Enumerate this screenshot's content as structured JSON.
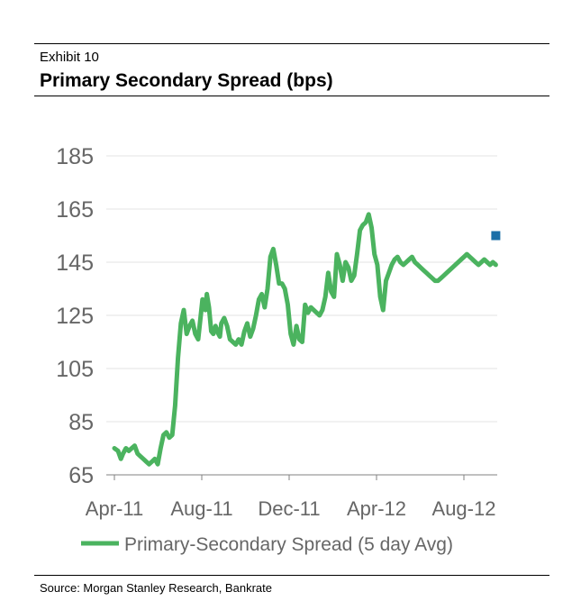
{
  "exhibit_label": "Exhibit 10",
  "title": "Primary Secondary Spread (bps)",
  "source": "Source: Morgan Stanley Research, Bankrate",
  "chart_data": {
    "type": "line",
    "title": "Primary Secondary Spread (bps)",
    "xlabel": "",
    "ylabel": "",
    "x_tick_labels": [
      "Apr-11",
      "Aug-11",
      "Dec-11",
      "Apr-12",
      "Aug-12"
    ],
    "y_ticks": [
      65,
      85,
      105,
      125,
      145,
      165,
      185
    ],
    "ylim": [
      65,
      185
    ],
    "x_range_days": [
      0,
      530
    ],
    "grid": true,
    "legend": "bottom",
    "series": [
      {
        "name": "Primary-Secondary Spread (5 day Avg)",
        "color": "#4bb35f",
        "x": [
          0,
          5,
          9,
          12,
          16,
          20,
          24,
          28,
          32,
          36,
          40,
          44,
          48,
          52,
          56,
          60,
          64,
          68,
          72,
          76,
          80,
          84,
          88,
          92,
          96,
          100,
          104,
          108,
          112,
          116,
          118,
          122,
          126,
          128,
          131,
          134,
          137,
          140,
          144,
          146,
          148,
          152,
          156,
          160,
          164,
          168,
          172,
          176,
          180,
          184,
          188,
          192,
          196,
          200,
          204,
          208,
          212,
          216,
          220,
          224,
          228,
          232,
          236,
          240,
          244,
          248,
          252,
          256,
          260,
          264,
          268,
          272,
          276,
          280,
          284,
          288,
          292,
          296,
          300,
          304,
          308,
          312,
          316,
          320,
          324,
          328,
          332,
          336,
          340,
          344,
          348,
          352,
          356,
          360,
          364,
          368,
          372,
          376,
          380,
          384,
          388,
          392,
          396,
          400,
          404,
          408,
          412,
          416,
          420,
          424,
          428,
          432,
          436,
          440,
          444,
          448,
          452,
          456,
          460,
          464,
          468,
          472,
          476,
          480,
          484,
          488,
          492,
          496,
          500,
          504,
          508,
          512,
          516,
          520,
          524,
          528
        ],
        "values": [
          75,
          74,
          71,
          73,
          75,
          74,
          75,
          76,
          73,
          72,
          71,
          70,
          69,
          70,
          71,
          69,
          75,
          80,
          81,
          79,
          80,
          91,
          109,
          122,
          127,
          118,
          121,
          123,
          118,
          116,
          121,
          131,
          127,
          133,
          128,
          119,
          118,
          121,
          118,
          117,
          122,
          124,
          121,
          116,
          115,
          114,
          116,
          114,
          119,
          122,
          117,
          120,
          125,
          131,
          133,
          128,
          135,
          147,
          150,
          144,
          137,
          137,
          135,
          129,
          118,
          114,
          121,
          116,
          115,
          129,
          126,
          128,
          127,
          126,
          125,
          127,
          132,
          141,
          134,
          132,
          148,
          144,
          138,
          145,
          143,
          138,
          140,
          148,
          157,
          159,
          160,
          163,
          158,
          148,
          144,
          132,
          127,
          138,
          141,
          144,
          146,
          147,
          145,
          144,
          145,
          146,
          147,
          145,
          144,
          143,
          142,
          141,
          140,
          139,
          138,
          138,
          139,
          140,
          141,
          142,
          143,
          144,
          145,
          146,
          147,
          148,
          147,
          146,
          145,
          144,
          145,
          146,
          145,
          144,
          145,
          144
        ]
      },
      {
        "name": "",
        "color": "#1a6fa8",
        "x": [
          528
        ],
        "values": [
          155
        ]
      }
    ]
  }
}
